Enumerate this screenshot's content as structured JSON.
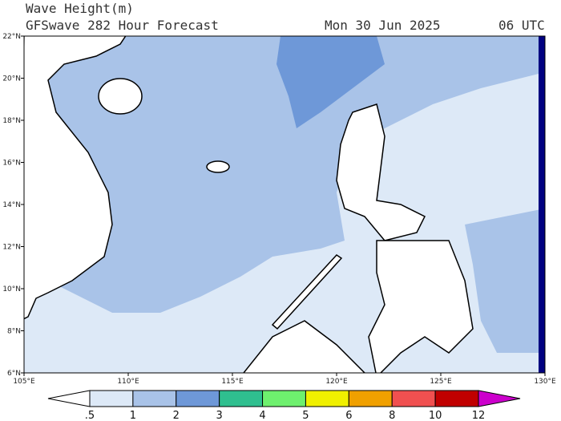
{
  "header": {
    "title": "Wave Height(m)",
    "subtitle": "GFSwave 282 Hour Forecast",
    "date": "Mon 30 Jun 2025",
    "time": "06 UTC"
  },
  "map": {
    "lat_ticks": [
      {
        "value": 22,
        "label": "22°N"
      },
      {
        "value": 20,
        "label": "20°N"
      },
      {
        "value": 18,
        "label": "18°N"
      },
      {
        "value": 16,
        "label": "16°N"
      },
      {
        "value": 14,
        "label": "14°N"
      },
      {
        "value": 12,
        "label": "12°N"
      },
      {
        "value": 10,
        "label": "10°N"
      },
      {
        "value": 8,
        "label": "8°N"
      },
      {
        "value": 6,
        "label": "6°N"
      }
    ],
    "lon_ticks": [
      {
        "value": 105,
        "label": "105°E"
      },
      {
        "value": 110,
        "label": "110°E"
      },
      {
        "value": 115,
        "label": "115°E"
      },
      {
        "value": 120,
        "label": "120°E"
      },
      {
        "value": 125,
        "label": "125°E"
      },
      {
        "value": 130,
        "label": "130°E"
      }
    ],
    "lat_range": [
      6,
      22
    ],
    "lon_range": [
      105,
      130
    ]
  },
  "colorbar": {
    "levels": [
      {
        "value": 0.5,
        "label": ".5"
      },
      1,
      2,
      3,
      4,
      5,
      6,
      8,
      10,
      12
    ],
    "colors": [
      "#ffffff",
      "#dde9f7",
      "#a9c3e8",
      "#6e98d8",
      "#2fbf8f",
      "#6ef06e",
      "#f0f000",
      "#f0a000",
      "#f05050",
      "#c00000",
      "#cc00cc"
    ]
  }
}
